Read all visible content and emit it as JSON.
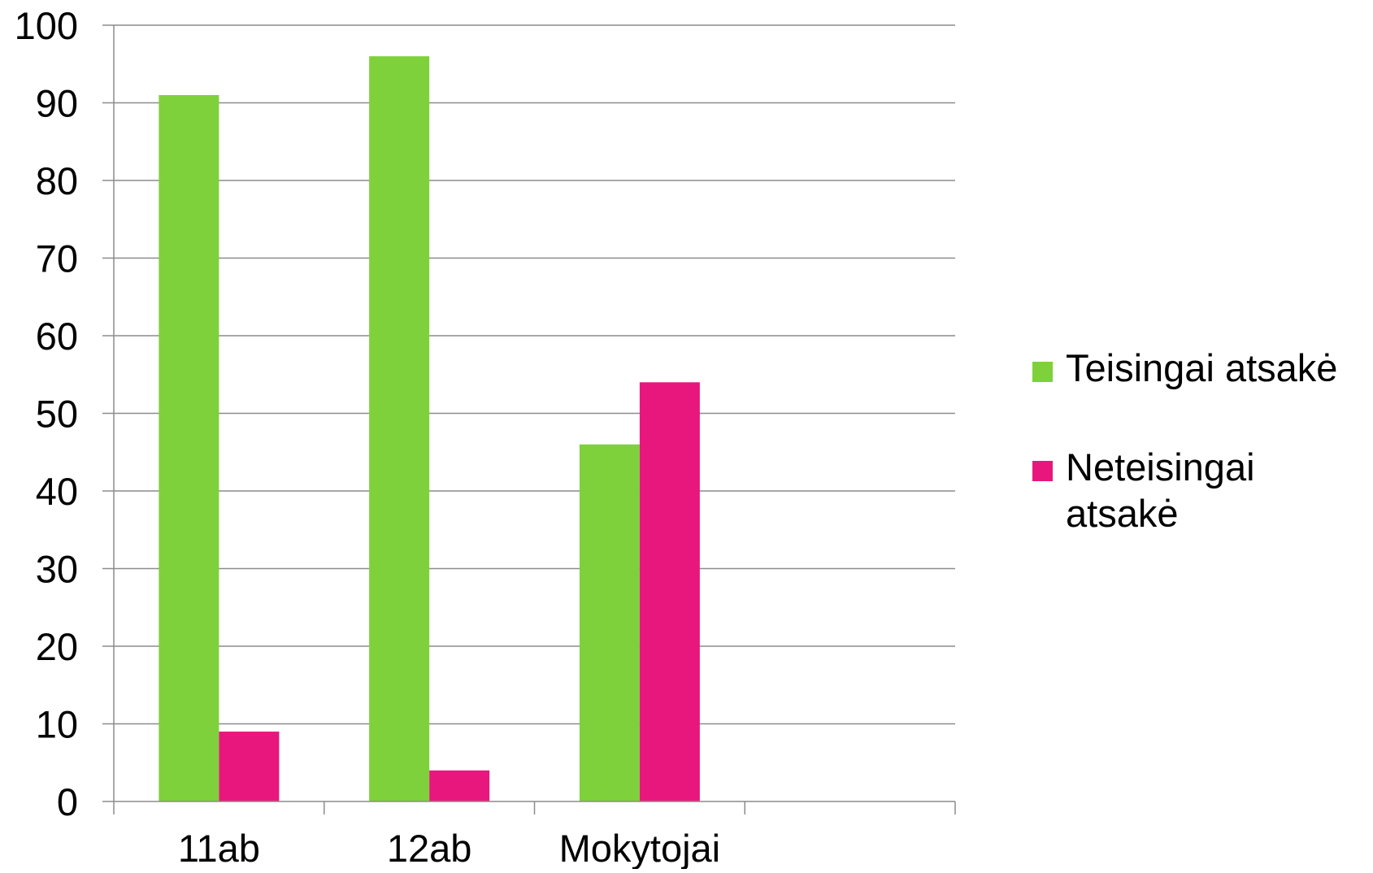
{
  "chart_data": {
    "type": "bar",
    "categories": [
      "11ab",
      "12ab",
      "Mokytojai",
      ""
    ],
    "series": [
      {
        "name": "Teisingai atsakė",
        "values": [
          91,
          96,
          46,
          null
        ],
        "color": "#7ed13b"
      },
      {
        "name": "Neteisingai atsakė",
        "values": [
          9,
          4,
          54,
          null
        ],
        "color": "#e8177d"
      }
    ],
    "title": "",
    "xlabel": "",
    "ylabel": "",
    "ylim": [
      0,
      100
    ],
    "yticks": [
      0,
      10,
      20,
      30,
      40,
      50,
      60,
      70,
      80,
      90,
      100
    ],
    "grid": true,
    "gridColor": "#8c8c8c",
    "legend": {
      "placement": "right",
      "lines": [
        [
          "Teisingai atsakė"
        ],
        [
          "Neteisingai",
          "atsakė"
        ]
      ]
    }
  }
}
